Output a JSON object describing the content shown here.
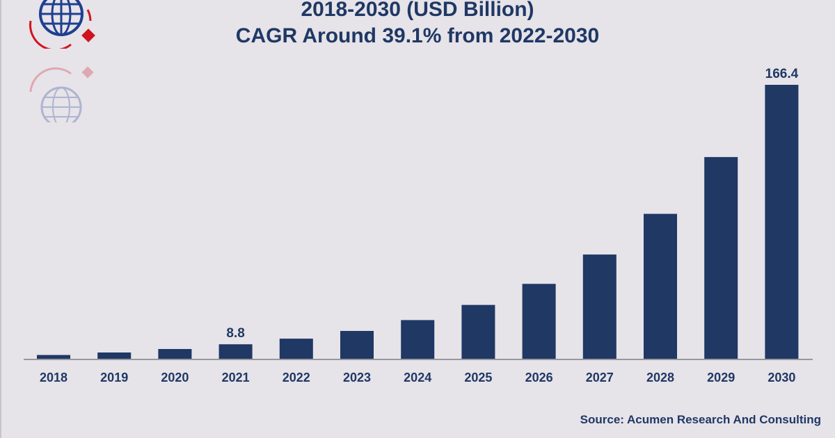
{
  "header": {
    "title_line1": "2018-2030 (USD Billion)",
    "title_line2": "CAGR Around 39.1% from 2022-2030"
  },
  "footer": {
    "source": "Source: Acumen Research And Consulting"
  },
  "logo": {
    "icon": "globe-icon",
    "globe_color": "#1f3f8f",
    "accent_color": "#d0141f"
  },
  "chart_data": {
    "type": "bar",
    "categories": [
      "2018",
      "2019",
      "2020",
      "2021",
      "2022",
      "2023",
      "2024",
      "2025",
      "2026",
      "2027",
      "2028",
      "2029",
      "2030"
    ],
    "values": [
      2.3,
      3.8,
      5.9,
      8.8,
      12.2,
      16.9,
      23.5,
      32.7,
      45.5,
      63.3,
      88.0,
      122.5,
      166.4
    ],
    "data_labels": [
      {
        "category": "2021",
        "text": "8.8"
      },
      {
        "category": "2030",
        "text": "166.4"
      }
    ],
    "ylim": [
      0,
      166.4
    ],
    "grid": false,
    "legend": "none",
    "bar_color": "#1f3864",
    "text_color": "#1f3864"
  }
}
